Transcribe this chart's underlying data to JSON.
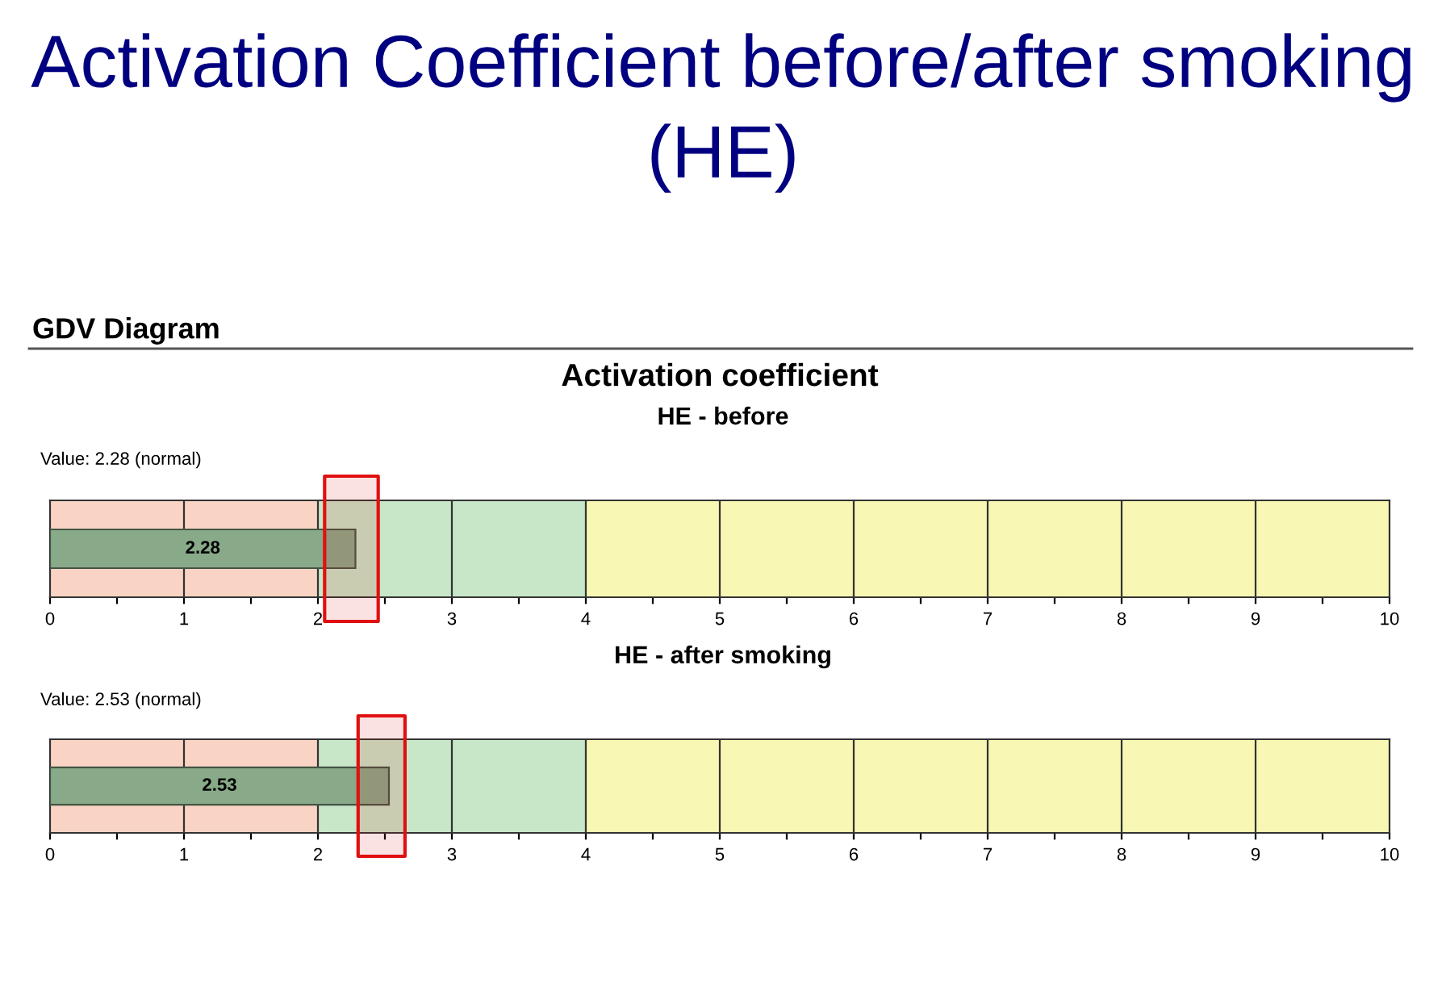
{
  "chart_data": [
    {
      "type": "bar",
      "orientation": "horizontal",
      "title": "HE - before",
      "categories": [
        null
      ],
      "values": [
        2.28
      ],
      "color": "#88aa88",
      "data_labels": true,
      "annotations": [
        "Activation Coefficient before/after smoking (HE)",
        "GDV Diagram",
        "Activation coefficient",
        "Value: 2.28 (normal)"
      ],
      "xlim": [
        0,
        10
      ],
      "xticks": [
        0,
        {
          "value": 0.5,
          "label": null
        },
        1,
        {
          "value": 1.5,
          "label": null
        },
        2,
        {
          "value": 2.5,
          "label": null
        },
        3,
        {
          "value": 3.5,
          "label": null
        },
        4,
        {
          "value": 4.5,
          "label": null
        },
        5,
        {
          "value": 5.5,
          "label": null
        },
        6,
        {
          "value": 6.5,
          "label": null
        },
        7,
        {
          "value": 7.5,
          "label": null
        },
        8,
        {
          "value": 8.5,
          "label": null
        },
        9,
        {
          "value": 9.5,
          "label": null
        },
        10
      ],
      "grid": "x",
      "bands": [
        {
          "axis": "x",
          "from": 0,
          "to": 2,
          "color": "#f9d4c4"
        },
        {
          "axis": "x",
          "from": 2,
          "to": 4,
          "color": "#c8e6c8"
        },
        {
          "axis": "x",
          "from": 4,
          "to": 10,
          "color": "#f8f8b4"
        },
        {
          "axis": "x",
          "from": 2.05,
          "to": 2.45,
          "color": "#e01010"
        }
      ]
    },
    {
      "type": "bar",
      "orientation": "horizontal",
      "title": "HE - after smoking",
      "categories": [
        null
      ],
      "values": [
        2.53
      ],
      "color": "#88aa88",
      "data_labels": true,
      "annotations": [
        "Value: 2.53 (normal)"
      ],
      "xlim": [
        0,
        10
      ],
      "xticks": [
        0,
        {
          "value": 0.5,
          "label": null
        },
        1,
        {
          "value": 1.5,
          "label": null
        },
        2,
        {
          "value": 2.5,
          "label": null
        },
        3,
        {
          "value": 3.5,
          "label": null
        },
        4,
        {
          "value": 4.5,
          "label": null
        },
        5,
        {
          "value": 5.5,
          "label": null
        },
        6,
        {
          "value": 6.5,
          "label": null
        },
        7,
        {
          "value": 7.5,
          "label": null
        },
        8,
        {
          "value": 8.5,
          "label": null
        },
        9,
        {
          "value": 9.5,
          "label": null
        },
        10
      ],
      "grid": "x",
      "bands": [
        {
          "axis": "x",
          "from": 0,
          "to": 2,
          "color": "#f9d4c4"
        },
        {
          "axis": "x",
          "from": 2,
          "to": 4,
          "color": "#c8e6c8"
        },
        {
          "axis": "x",
          "from": 4,
          "to": 10,
          "color": "#f8f8b4"
        },
        {
          "axis": "x",
          "from": 2.3,
          "to": 2.65,
          "color": "#e01010"
        }
      ]
    }
  ]
}
